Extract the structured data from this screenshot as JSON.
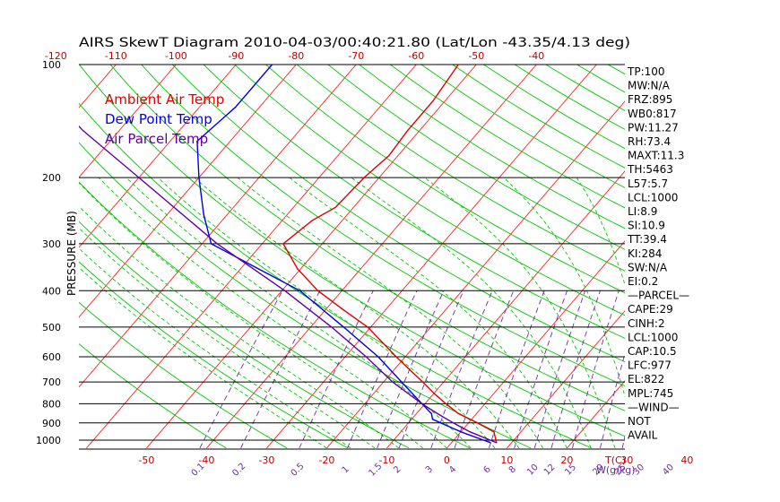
{
  "chart_data": {
    "type": "line",
    "title": "AIRS SkewT Diagram 2010-04-03/00:40:21.80 (Lat/Lon -43.35/4.13 deg)",
    "ylabel": "PRESSURE (MB)",
    "xlabel": "T(C)",
    "mixing_ratio_label": "W(g/kg)",
    "y_scale": "log",
    "ylim": [
      1050,
      100
    ],
    "xlim_bottom": [
      -55,
      55
    ],
    "pressure_ticks": [
      "100",
      "200",
      "300",
      "400",
      "500",
      "600",
      "700",
      "800",
      "900",
      "1000"
    ],
    "bottom_temp_ticks": [
      "-50",
      "-40",
      "-30",
      "-20",
      "-10",
      "0",
      "10",
      "20",
      "30",
      "40"
    ],
    "top_temp_ticks": [
      "-120",
      "-110",
      "-100",
      "-90",
      "-80",
      "-70",
      "-60",
      "-50",
      "-40"
    ],
    "mixing_ratio_ticks": [
      "0.1",
      "0.2",
      "0.5",
      "1",
      "1.5",
      "2",
      "3",
      "4",
      "6",
      "8",
      "10",
      "12",
      "15",
      "20",
      "25",
      "30",
      "40"
    ],
    "legend": [
      {
        "name": "Ambient Air Temp",
        "color": "#e00000"
      },
      {
        "name": "Dew Point Temp",
        "color": "#0000e0"
      },
      {
        "name": "Air Parcel Temp",
        "color": "#6000a0"
      }
    ],
    "series": [
      {
        "name": "Ambient Air Temp",
        "color": "#e00000",
        "points": [
          {
            "p": 1016,
            "t": 7.5
          },
          {
            "p": 950,
            "t": 5.5
          },
          {
            "p": 900,
            "t": 1.5
          },
          {
            "p": 850,
            "t": -3.0
          },
          {
            "p": 800,
            "t": -6.5
          },
          {
            "p": 750,
            "t": -10.0
          },
          {
            "p": 700,
            "t": -13.5
          },
          {
            "p": 600,
            "t": -21.5
          },
          {
            "p": 500,
            "t": -30.5
          },
          {
            "p": 450,
            "t": -37.0
          },
          {
            "p": 400,
            "t": -44.0
          },
          {
            "p": 350,
            "t": -50.5
          },
          {
            "p": 300,
            "t": -56.5
          },
          {
            "p": 260,
            "t": -55.0
          },
          {
            "p": 240,
            "t": -53.0
          },
          {
            "p": 200,
            "t": -52.5
          },
          {
            "p": 175,
            "t": -51.5
          },
          {
            "p": 150,
            "t": -52.0
          },
          {
            "p": 125,
            "t": -52.0
          },
          {
            "p": 100,
            "t": -53.0
          }
        ]
      },
      {
        "name": "Dew Point Temp",
        "color": "#0000e0",
        "points": [
          {
            "p": 1016,
            "t": 6.5
          },
          {
            "p": 950,
            "t": 0.0
          },
          {
            "p": 880,
            "t": -6.5
          },
          {
            "p": 850,
            "t": -7.5
          },
          {
            "p": 800,
            "t": -10.5
          },
          {
            "p": 700,
            "t": -17.0
          },
          {
            "p": 600,
            "t": -24.5
          },
          {
            "p": 500,
            "t": -34.5
          },
          {
            "p": 400,
            "t": -47.0
          },
          {
            "p": 350,
            "t": -57.0
          },
          {
            "p": 300,
            "t": -68.5
          },
          {
            "p": 250,
            "t": -74.0
          },
          {
            "p": 200,
            "t": -80.0
          },
          {
            "p": 160,
            "t": -85.5
          },
          {
            "p": 130,
            "t": -84.0
          },
          {
            "p": 100,
            "t": -84.0
          }
        ]
      },
      {
        "name": "Air Parcel Temp",
        "color": "#6000a0",
        "points": [
          {
            "p": 1016,
            "t": 7.5
          },
          {
            "p": 950,
            "t": 1.5
          },
          {
            "p": 900,
            "t": -2.5
          },
          {
            "p": 850,
            "t": -6.5
          },
          {
            "p": 800,
            "t": -10.5
          },
          {
            "p": 700,
            "t": -18.5
          },
          {
            "p": 600,
            "t": -26.5
          },
          {
            "p": 500,
            "t": -36.5
          },
          {
            "p": 400,
            "t": -49.5
          },
          {
            "p": 300,
            "t": -67.5
          },
          {
            "p": 200,
            "t": -90.0
          },
          {
            "p": 150,
            "t": -106.0
          },
          {
            "p": 100,
            "t": -126.0
          }
        ]
      }
    ],
    "indices": [
      "TP:100",
      "MW:N/A",
      "FRZ:895",
      "WB0:817",
      "PW:11.27",
      "RH:73.4",
      "MAXT:11.3",
      "TH:5463",
      "L57:5.7",
      "LCL:1000",
      "LI:8.9",
      "SI:10.9",
      "TT:39.4",
      "KI:284",
      "SW:N/A",
      "EI:0.2",
      "—PARCEL—",
      "CAPE:29",
      "CINH:2",
      "LCL:1000",
      "CAP:10.5",
      "LFC:977",
      "EL:822",
      "MPL:745",
      "—WIND—",
      "NOT",
      "AVAIL"
    ],
    "colors": {
      "isotherm": "#ff2020",
      "dry_adiabat": "#00c800",
      "moist_adiabat": "#00c800",
      "mixing_ratio": "#6a2ea0",
      "isobar": "#000000",
      "tick_label_pressure": "#000000",
      "tick_label_temp": "#c00000",
      "tick_label_mixing": "#6a2ea0"
    },
    "grid": true
  }
}
